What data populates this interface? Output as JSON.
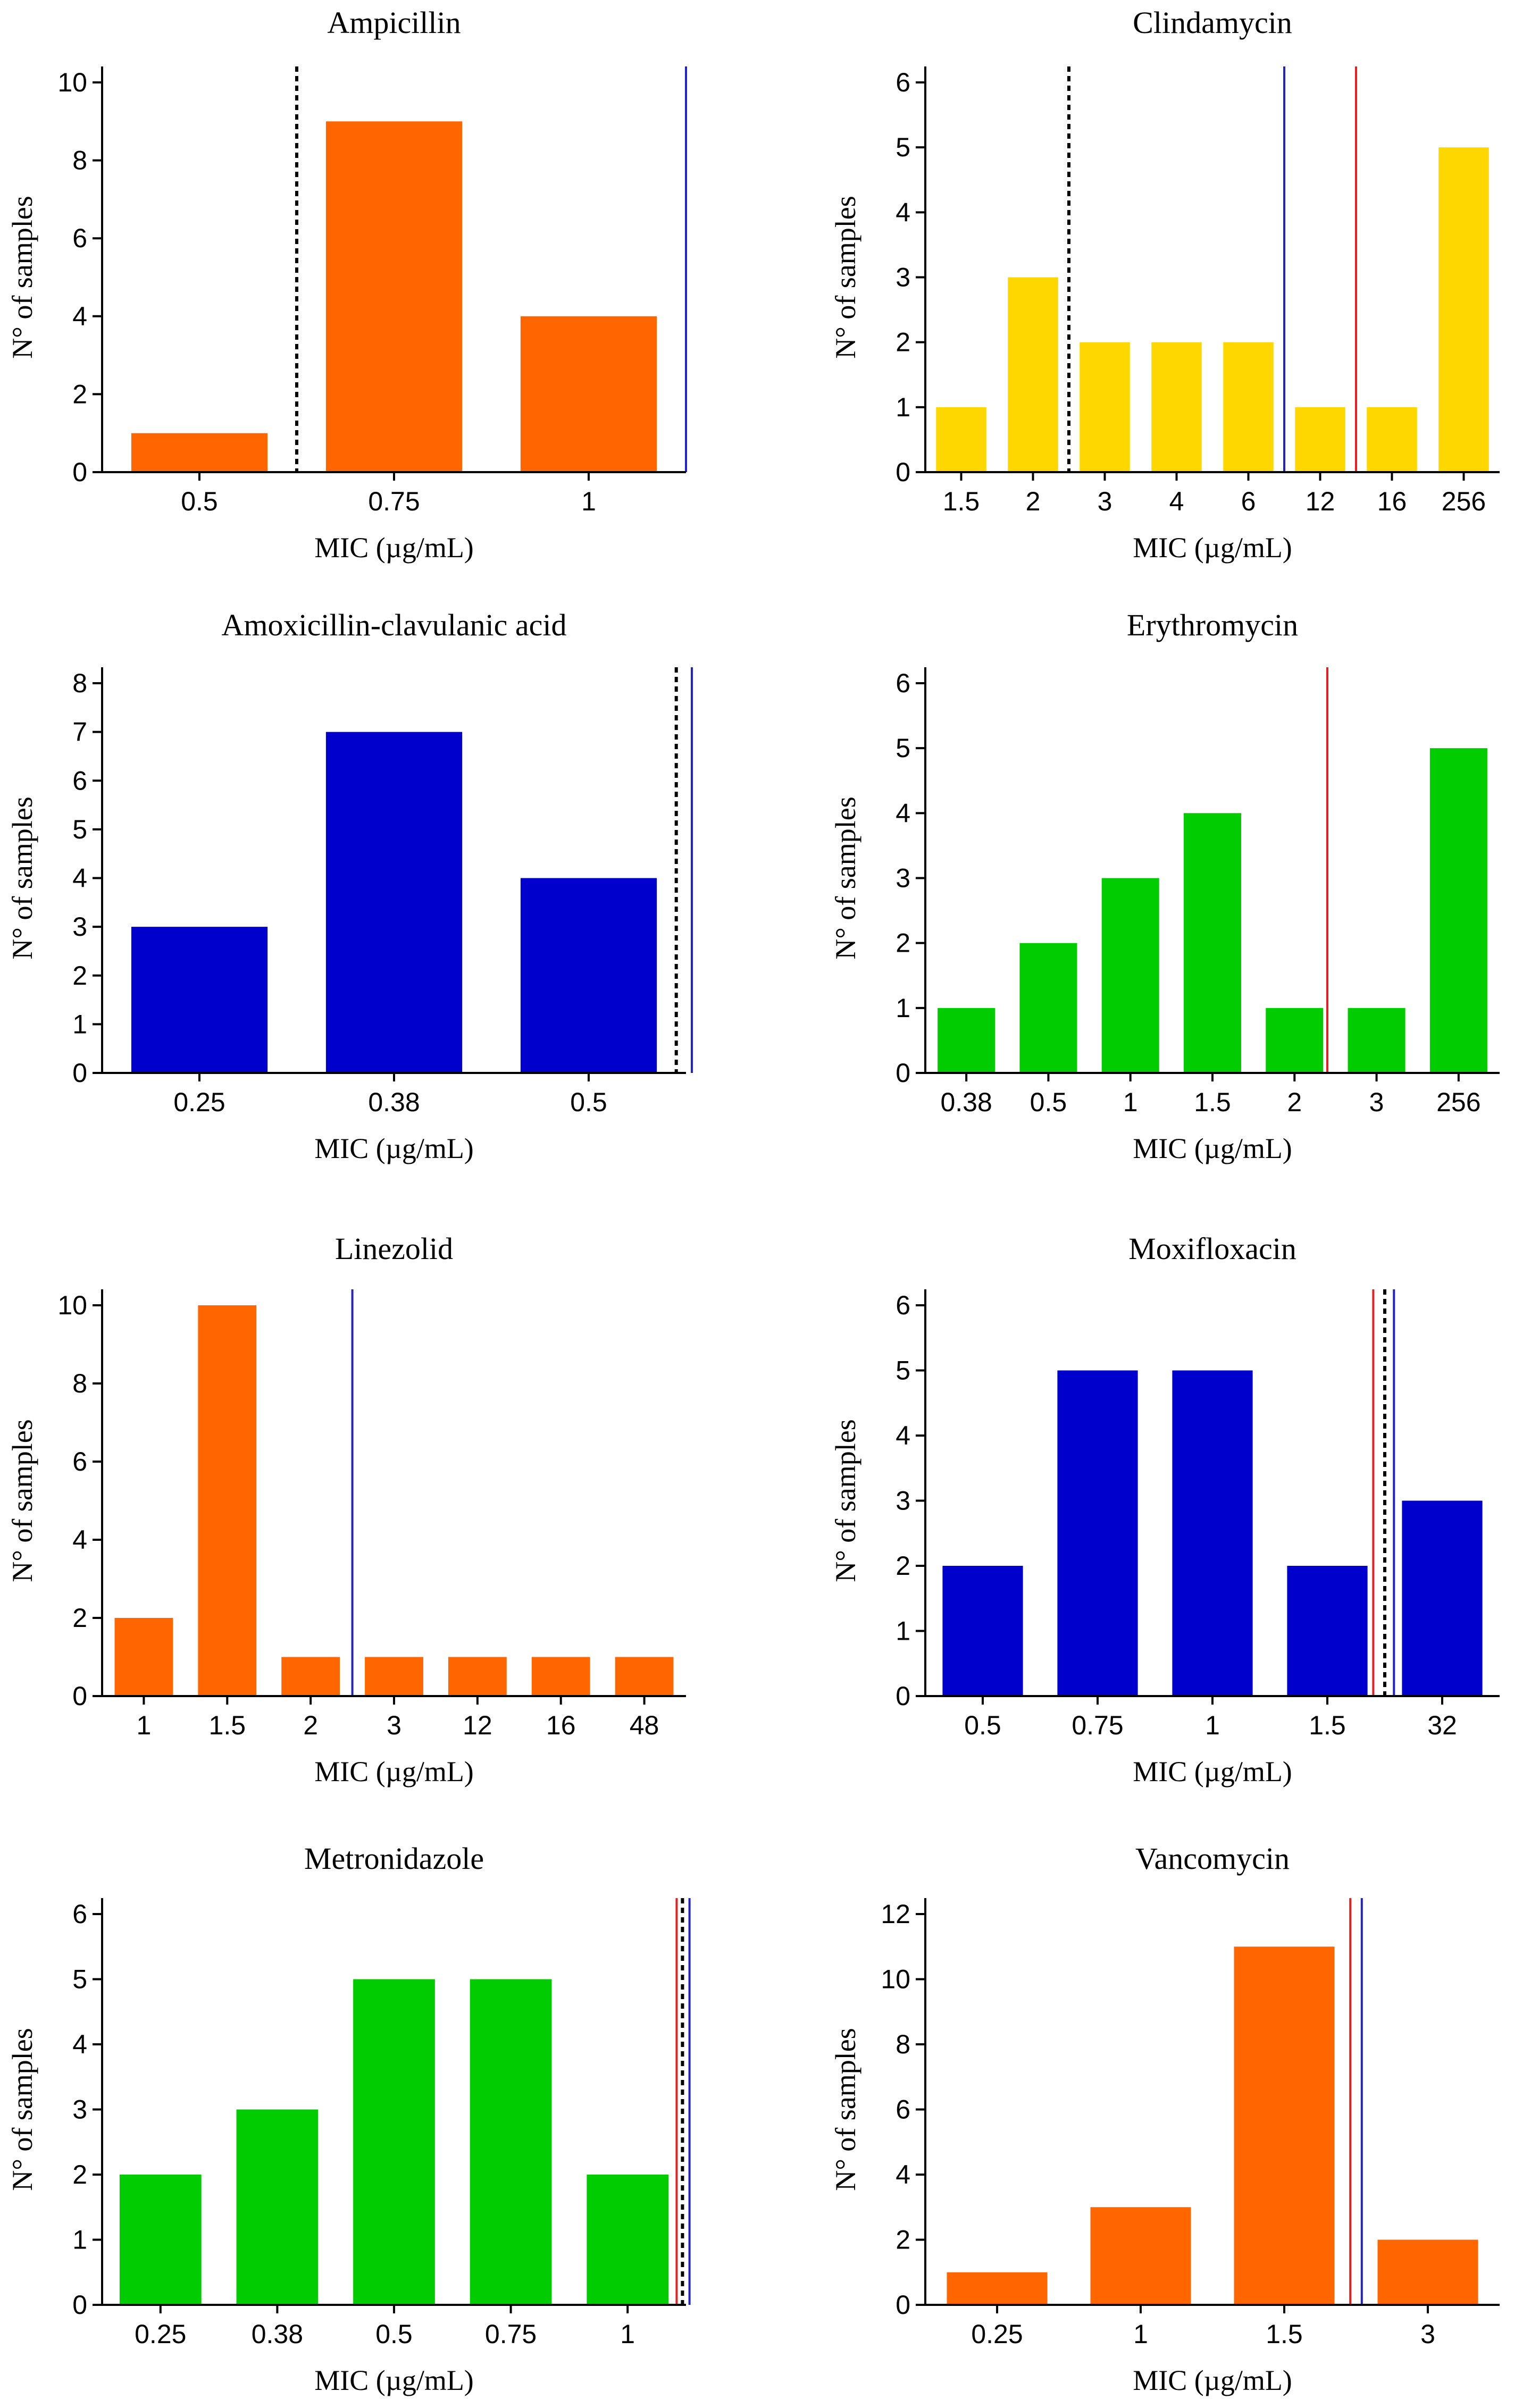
{
  "colors": {
    "orange": "#ff6600",
    "yellow": "#ffd700",
    "blue": "#0000cc",
    "green": "#00cc00",
    "ref_black": "#000000",
    "ref_blue": "#2222cc",
    "ref_red": "#e62020"
  },
  "shared": {
    "ylabel": "N° of samples",
    "xlabel": "MIC (µg/mL)"
  },
  "chart_data": [
    {
      "id": "ampicillin",
      "type": "bar",
      "title": "Ampicillin",
      "xlabel": "MIC (µg/mL)",
      "ylabel": "N° of samples",
      "categories": [
        "0.5",
        "0.75",
        "1"
      ],
      "values": [
        1,
        9,
        4
      ],
      "ylim": [
        0,
        10
      ],
      "yticks": [
        0,
        2,
        4,
        6,
        8,
        10
      ],
      "color": "orange",
      "ref_lines": [
        {
          "style": "dashed",
          "color": "ref_black",
          "after_category": 0.5
        },
        {
          "style": "solid",
          "color": "ref_blue",
          "after_category": 2.5
        }
      ]
    },
    {
      "id": "clindamycin",
      "type": "bar",
      "title": "Clindamycin",
      "xlabel": "MIC (µg/mL)",
      "ylabel": "N° of samples",
      "categories": [
        "1.5",
        "2",
        "3",
        "4",
        "6",
        "12",
        "16",
        "256"
      ],
      "values": [
        1,
        3,
        2,
        2,
        2,
        1,
        1,
        5
      ],
      "ylim": [
        0,
        6
      ],
      "yticks": [
        0,
        1,
        2,
        3,
        4,
        5,
        6
      ],
      "color": "yellow",
      "ref_lines": [
        {
          "style": "dashed",
          "color": "ref_black",
          "after_category": 1.5
        },
        {
          "style": "solid",
          "color": "ref_blue",
          "after_category": 4.5
        },
        {
          "style": "solid",
          "color": "ref_red",
          "after_category": 5.5
        }
      ]
    },
    {
      "id": "amoxicillin-clavulanic",
      "type": "bar",
      "title": "Amoxicillin-clavulanic acid",
      "xlabel": "MIC (µg/mL)",
      "ylabel": "N° of samples",
      "categories": [
        "0.25",
        "0.38",
        "0.5"
      ],
      "values": [
        3,
        7,
        4
      ],
      "ylim": [
        0,
        8
      ],
      "yticks": [
        0,
        1,
        2,
        3,
        4,
        5,
        6,
        7,
        8
      ],
      "color": "blue",
      "ref_lines": [
        {
          "style": "dashed",
          "color": "ref_black",
          "after_category": 2.45
        },
        {
          "style": "solid",
          "color": "ref_blue",
          "after_category": 2.53
        }
      ]
    },
    {
      "id": "erythromycin",
      "type": "bar",
      "title": "Erythromycin",
      "xlabel": "MIC (µg/mL)",
      "ylabel": "N° of samples",
      "categories": [
        "0.38",
        "0.5",
        "1",
        "1.5",
        "2",
        "3",
        "256"
      ],
      "values": [
        1,
        2,
        3,
        4,
        1,
        1,
        5
      ],
      "ylim": [
        0,
        6
      ],
      "yticks": [
        0,
        1,
        2,
        3,
        4,
        5,
        6
      ],
      "color": "green",
      "ref_lines": [
        {
          "style": "solid",
          "color": "ref_red",
          "after_category": 4.4
        }
      ]
    },
    {
      "id": "linezolid",
      "type": "bar",
      "title": "Linezolid",
      "xlabel": "MIC (µg/mL)",
      "ylabel": "N° of samples",
      "categories": [
        "1",
        "1.5",
        "2",
        "3",
        "12",
        "16",
        "48"
      ],
      "values": [
        2,
        10,
        1,
        1,
        1,
        1,
        1
      ],
      "ylim": [
        0,
        10
      ],
      "yticks": [
        0,
        2,
        4,
        6,
        8,
        10
      ],
      "color": "orange",
      "ref_lines": [
        {
          "style": "solid",
          "color": "ref_blue",
          "after_category": 2.5
        }
      ]
    },
    {
      "id": "moxifloxacin",
      "type": "bar",
      "title": "Moxifloxacin",
      "xlabel": "MIC (µg/mL)",
      "ylabel": "N° of samples",
      "categories": [
        "0.5",
        "0.75",
        "1",
        "1.5",
        "32"
      ],
      "values": [
        2,
        5,
        5,
        2,
        3
      ],
      "ylim": [
        0,
        6
      ],
      "yticks": [
        0,
        1,
        2,
        3,
        4,
        5,
        6
      ],
      "color": "blue",
      "ref_lines": [
        {
          "style": "solid",
          "color": "ref_red",
          "after_category": 3.4
        },
        {
          "style": "dashed",
          "color": "ref_black",
          "after_category": 3.5
        },
        {
          "style": "solid",
          "color": "ref_blue",
          "after_category": 3.58
        }
      ]
    },
    {
      "id": "metronidazole",
      "type": "bar",
      "title": "Metronidazole",
      "xlabel": "MIC (µg/mL)",
      "ylabel": "N° of samples",
      "categories": [
        "0.25",
        "0.38",
        "0.5",
        "0.75",
        "1"
      ],
      "values": [
        2,
        3,
        5,
        5,
        2
      ],
      "ylim": [
        0,
        6
      ],
      "yticks": [
        0,
        1,
        2,
        3,
        4,
        5,
        6
      ],
      "color": "green",
      "ref_lines": [
        {
          "style": "solid",
          "color": "ref_red",
          "after_category": 4.42
        },
        {
          "style": "dashed",
          "color": "ref_black",
          "after_category": 4.47
        },
        {
          "style": "solid",
          "color": "ref_blue",
          "after_category": 4.53
        }
      ]
    },
    {
      "id": "vancomycin",
      "type": "bar",
      "title": "Vancomycin",
      "xlabel": "MIC (µg/mL)",
      "ylabel": "N° of samples",
      "categories": [
        "0.25",
        "1",
        "1.5",
        "3"
      ],
      "values": [
        1,
        3,
        11,
        2
      ],
      "ylim": [
        0,
        12
      ],
      "yticks": [
        0,
        2,
        4,
        6,
        8,
        10,
        12
      ],
      "color": "orange",
      "ref_lines": [
        {
          "style": "solid",
          "color": "ref_red",
          "after_category": 2.46
        },
        {
          "style": "solid",
          "color": "ref_blue",
          "after_category": 2.54
        }
      ]
    }
  ]
}
